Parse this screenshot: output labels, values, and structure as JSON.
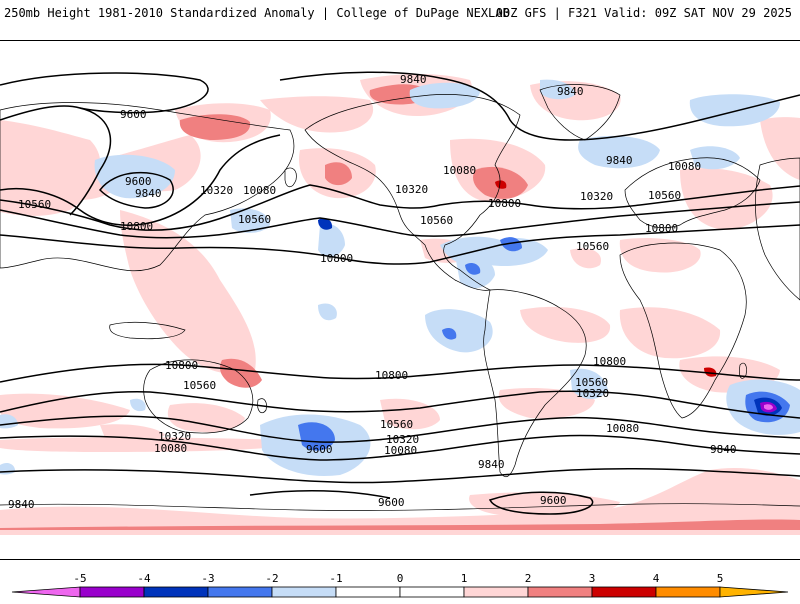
{
  "header": {
    "title_left": "250mb Height 1981-2010 Standardized Anomaly | College of DuPage NEXLAB",
    "title_right": "00Z GFS | F321 Valid: 09Z SAT NOV 29 2025"
  },
  "map": {
    "contour_labels": [
      {
        "id": "c1",
        "text": "9840"
      },
      {
        "id": "c2",
        "text": "9840"
      },
      {
        "id": "c3",
        "text": "9600"
      },
      {
        "id": "c4",
        "text": "9600"
      },
      {
        "id": "c5",
        "text": "9840"
      },
      {
        "id": "c6",
        "text": "10320"
      },
      {
        "id": "c7",
        "text": "10080"
      },
      {
        "id": "c8",
        "text": "10560"
      },
      {
        "id": "c9",
        "text": "10800"
      },
      {
        "id": "c10",
        "text": "10560"
      },
      {
        "id": "c11",
        "text": "10800"
      },
      {
        "id": "c12",
        "text": "10320"
      },
      {
        "id": "c13",
        "text": "10080"
      },
      {
        "id": "c14",
        "text": "10560"
      },
      {
        "id": "c15",
        "text": "10800"
      },
      {
        "id": "c16",
        "text": "9840"
      },
      {
        "id": "c17",
        "text": "10080"
      },
      {
        "id": "c18",
        "text": "10320"
      },
      {
        "id": "c19",
        "text": "10560"
      },
      {
        "id": "c20",
        "text": "10800"
      },
      {
        "id": "c21",
        "text": "10800"
      },
      {
        "id": "c22",
        "text": "10560"
      },
      {
        "id": "c23",
        "text": "10800"
      },
      {
        "id": "c24",
        "text": "10800"
      },
      {
        "id": "c25",
        "text": "10560"
      },
      {
        "id": "c26",
        "text": "10320"
      },
      {
        "id": "c27",
        "text": "10080"
      },
      {
        "id": "c28",
        "text": "9600"
      },
      {
        "id": "c29",
        "text": "10320"
      },
      {
        "id": "c30",
        "text": "10560"
      },
      {
        "id": "c31",
        "text": "10080"
      },
      {
        "id": "c32",
        "text": "9840"
      },
      {
        "id": "c33",
        "text": "10560"
      },
      {
        "id": "c34",
        "text": "10320"
      },
      {
        "id": "c35",
        "text": "10080"
      },
      {
        "id": "c36",
        "text": "9840"
      },
      {
        "id": "c37",
        "text": "9840"
      },
      {
        "id": "c38",
        "text": "9600"
      },
      {
        "id": "c39",
        "text": "9600"
      }
    ]
  },
  "colorbar": {
    "ticks": [
      "-5",
      "-4",
      "-3",
      "-2",
      "-1",
      "0",
      "1",
      "2",
      "3",
      "4",
      "5"
    ],
    "colors": {
      "neg5": "#ee66ee",
      "neg4": "#9900cc",
      "neg3": "#0033bb",
      "neg2": "#4477ee",
      "neg1": "#c6ddf7",
      "zero": "#ffffff",
      "pos1": "#ffd6d6",
      "pos2": "#f08080",
      "pos3": "#cc0000",
      "pos4": "#ff8c00",
      "pos5": "#ffb300"
    }
  }
}
